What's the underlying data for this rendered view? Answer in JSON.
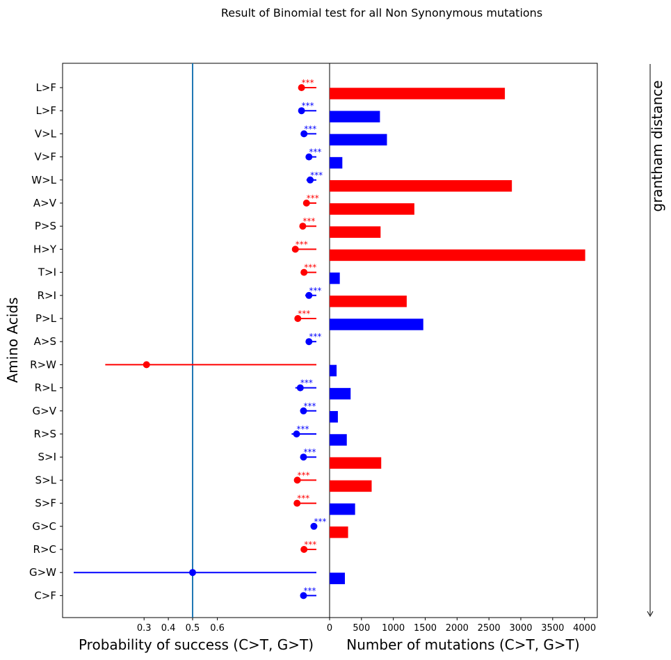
{
  "figure": {
    "suptitle": "Result of Binomial test for all Non Synonymous mutations",
    "side_label": "grantham distance"
  },
  "colors": {
    "red": "#ff0000",
    "blue": "#0000ff",
    "refline": "#1f77b4"
  },
  "chart_data": [
    {
      "type": "scatter",
      "subtype": "point-with-interval",
      "xlabel": "Probability of success (C>T, G>T)",
      "ylabel": "Amino Acids",
      "xticks": [
        "0.3",
        "0.4",
        "0.5",
        "0.6"
      ],
      "reference_line_x": 0.5,
      "categories": [
        "L>F",
        "L>F",
        "V>L",
        "V>F",
        "W>L",
        "A>V",
        "P>S",
        "H>Y",
        "T>I",
        "R>I",
        "P>L",
        "A>S",
        "R>W",
        "R>L",
        "G>V",
        "R>S",
        "S>I",
        "S>L",
        "S>F",
        "G>C",
        "R>C",
        "G>W",
        "C>F"
      ],
      "points": [
        {
          "label": "L>F",
          "p": 0.94,
          "ci_low": 0.94,
          "ci_high": 1.0,
          "color": "red",
          "signif": "***"
        },
        {
          "label": "L>F",
          "p": 0.94,
          "ci_low": 0.94,
          "ci_high": 1.0,
          "color": "blue",
          "signif": "***"
        },
        {
          "label": "V>L",
          "p": 0.95,
          "ci_low": 0.95,
          "ci_high": 1.0,
          "color": "blue",
          "signif": "***"
        },
        {
          "label": "V>F",
          "p": 0.97,
          "ci_low": 0.96,
          "ci_high": 1.0,
          "color": "blue",
          "signif": "***"
        },
        {
          "label": "W>L",
          "p": 0.975,
          "ci_low": 0.96,
          "ci_high": 1.0,
          "color": "blue",
          "signif": "***"
        },
        {
          "label": "A>V",
          "p": 0.96,
          "ci_low": 0.96,
          "ci_high": 1.0,
          "color": "red",
          "signif": "***"
        },
        {
          "label": "P>S",
          "p": 0.945,
          "ci_low": 0.945,
          "ci_high": 1.0,
          "color": "red",
          "signif": "***"
        },
        {
          "label": "H>Y",
          "p": 0.915,
          "ci_low": 0.91,
          "ci_high": 1.0,
          "color": "red",
          "signif": "***"
        },
        {
          "label": "T>I",
          "p": 0.95,
          "ci_low": 0.95,
          "ci_high": 1.0,
          "color": "red",
          "signif": "***"
        },
        {
          "label": "R>I",
          "p": 0.97,
          "ci_low": 0.955,
          "ci_high": 1.0,
          "color": "blue",
          "signif": "***"
        },
        {
          "label": "P>L",
          "p": 0.925,
          "ci_low": 0.92,
          "ci_high": 1.0,
          "color": "red",
          "signif": "***"
        },
        {
          "label": "A>S",
          "p": 0.97,
          "ci_low": 0.97,
          "ci_high": 1.0,
          "color": "blue",
          "signif": "***"
        },
        {
          "label": "R>W",
          "p": 0.31,
          "ci_low": 0.14,
          "ci_high": 1.0,
          "color": "red",
          "signif": ""
        },
        {
          "label": "R>L",
          "p": 0.935,
          "ci_low": 0.915,
          "ci_high": 1.0,
          "color": "blue",
          "signif": "***"
        },
        {
          "label": "G>V",
          "p": 0.948,
          "ci_low": 0.938,
          "ci_high": 1.0,
          "color": "blue",
          "signif": "***"
        },
        {
          "label": "R>S",
          "p": 0.92,
          "ci_low": 0.9,
          "ci_high": 1.0,
          "color": "blue",
          "signif": "***"
        },
        {
          "label": "S>I",
          "p": 0.948,
          "ci_low": 0.938,
          "ci_high": 1.0,
          "color": "blue",
          "signif": "***"
        },
        {
          "label": "S>L",
          "p": 0.923,
          "ci_low": 0.918,
          "ci_high": 1.0,
          "color": "red",
          "signif": "***"
        },
        {
          "label": "S>F",
          "p": 0.922,
          "ci_low": 0.915,
          "ci_high": 1.0,
          "color": "red",
          "signif": "***"
        },
        {
          "label": "G>C",
          "p": 0.99,
          "ci_low": 0.99,
          "ci_high": 1.0,
          "color": "blue",
          "signif": "***"
        },
        {
          "label": "R>C",
          "p": 0.95,
          "ci_low": 0.94,
          "ci_high": 1.0,
          "color": "red",
          "signif": "***"
        },
        {
          "label": "G>W",
          "p": 0.5,
          "ci_low": 0.01,
          "ci_high": 1.0,
          "color": "blue",
          "signif": ""
        },
        {
          "label": "C>F",
          "p": 0.948,
          "ci_low": 0.936,
          "ci_high": 1.0,
          "color": "blue",
          "signif": "***"
        }
      ]
    },
    {
      "type": "bar",
      "orientation": "horizontal",
      "xlabel": "Number of mutations (C>T, G>T)",
      "xlim": [
        0,
        4200
      ],
      "xticks": [
        "0",
        "500",
        "1000",
        "1500",
        "2000",
        "2500",
        "3000",
        "3500",
        "4000"
      ],
      "categories": [
        "L>F",
        "L>F",
        "V>L",
        "V>F",
        "W>L",
        "A>V",
        "P>S",
        "H>Y",
        "T>I",
        "R>I",
        "P>L",
        "A>S",
        "R>W",
        "R>L",
        "G>V",
        "R>S",
        "S>I",
        "S>L",
        "S>F",
        "G>C",
        "R>C",
        "G>W",
        "C>F"
      ],
      "bars": [
        {
          "value": 2750,
          "color": "red"
        },
        {
          "value": 790,
          "color": "blue"
        },
        {
          "value": 900,
          "color": "blue"
        },
        {
          "value": 200,
          "color": "blue"
        },
        {
          "value": 2860,
          "color": "red"
        },
        {
          "value": 1330,
          "color": "red"
        },
        {
          "value": 800,
          "color": "red"
        },
        {
          "value": 4010,
          "color": "red"
        },
        {
          "value": 160,
          "color": "blue"
        },
        {
          "value": 1210,
          "color": "red"
        },
        {
          "value": 1470,
          "color": "blue"
        },
        {
          "value": 0,
          "color": "blue"
        },
        {
          "value": 110,
          "color": "blue"
        },
        {
          "value": 330,
          "color": "blue"
        },
        {
          "value": 130,
          "color": "blue"
        },
        {
          "value": 270,
          "color": "blue"
        },
        {
          "value": 810,
          "color": "red"
        },
        {
          "value": 660,
          "color": "red"
        },
        {
          "value": 400,
          "color": "blue"
        },
        {
          "value": 290,
          "color": "red"
        },
        {
          "value": 0,
          "color": "blue"
        },
        {
          "value": 240,
          "color": "blue"
        },
        {
          "value": 0,
          "color": "blue"
        }
      ]
    }
  ]
}
